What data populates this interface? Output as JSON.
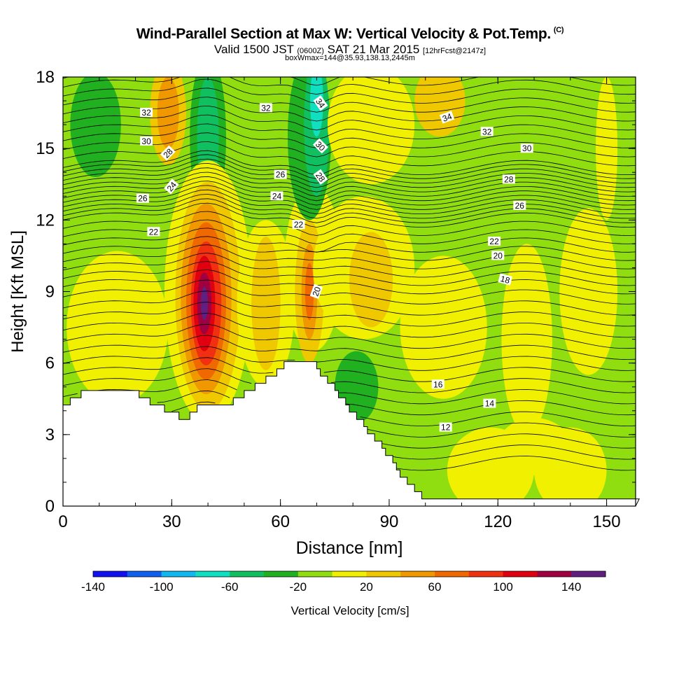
{
  "title": {
    "main": "Wind-Parallel Section at Max W: Vertical Velocity & Pot.Temp.",
    "copyright": "(C)",
    "valid_prefix": "Valid 1500 JST",
    "valid_utc": "(0600Z)",
    "valid_date": "SAT 21 Mar 2015",
    "forecast": "[12hrFcst@2147z]",
    "boxinfo": "boxWmax=144@35.93,138.13,2445m"
  },
  "colorbar": {
    "label": "Vertical Velocity [cm/s]",
    "tick_labels": [
      "-140",
      "-100",
      "-60",
      "-20",
      "20",
      "60",
      "100",
      "140"
    ],
    "colors": [
      "#1010f0",
      "#1060f0",
      "#10b8f0",
      "#10e0c0",
      "#10c060",
      "#20b020",
      "#90dd10",
      "#f0f000",
      "#f0c800",
      "#f09800",
      "#f06800",
      "#f03010",
      "#e00010",
      "#a00040",
      "#602080"
    ]
  },
  "chart_data": {
    "type": "heatmap",
    "xlabel": "Distance [nm]",
    "ylabel": "Height [Kft MSL]",
    "xlim": [
      0,
      158
    ],
    "ylim": [
      0,
      18
    ],
    "x_ticks": [
      0,
      30,
      60,
      90,
      120,
      150
    ],
    "y_ticks": [
      0,
      3,
      6,
      9,
      12,
      15,
      18
    ],
    "w_max": 144,
    "w_max_location": {
      "distance_nm": 39,
      "height_kft": 8.5
    },
    "theta_contour_labels": [
      "34",
      "34",
      "32",
      "32",
      "32",
      "30",
      "30",
      "30",
      "28",
      "28",
      "28",
      "26",
      "26",
      "26",
      "24",
      "24",
      "22",
      "22",
      "22",
      "20",
      "20",
      "18",
      "16",
      "14",
      "12"
    ],
    "terrain_height_kft": [
      [
        0,
        4.2
      ],
      [
        3,
        4.5
      ],
      [
        6,
        4.8
      ],
      [
        20,
        4.8
      ],
      [
        22,
        4.5
      ],
      [
        29,
        4.0
      ],
      [
        33,
        3.6
      ],
      [
        37,
        4.2
      ],
      [
        45,
        4.3
      ],
      [
        58,
        5.5
      ],
      [
        62,
        6.1
      ],
      [
        68,
        6.1
      ],
      [
        70,
        5.8
      ],
      [
        75,
        4.8
      ],
      [
        80,
        3.9
      ],
      [
        85,
        3.0
      ],
      [
        88,
        2.5
      ],
      [
        92,
        1.5
      ],
      [
        97,
        0.6
      ],
      [
        100,
        0.3
      ],
      [
        158,
        0.3
      ]
    ]
  }
}
